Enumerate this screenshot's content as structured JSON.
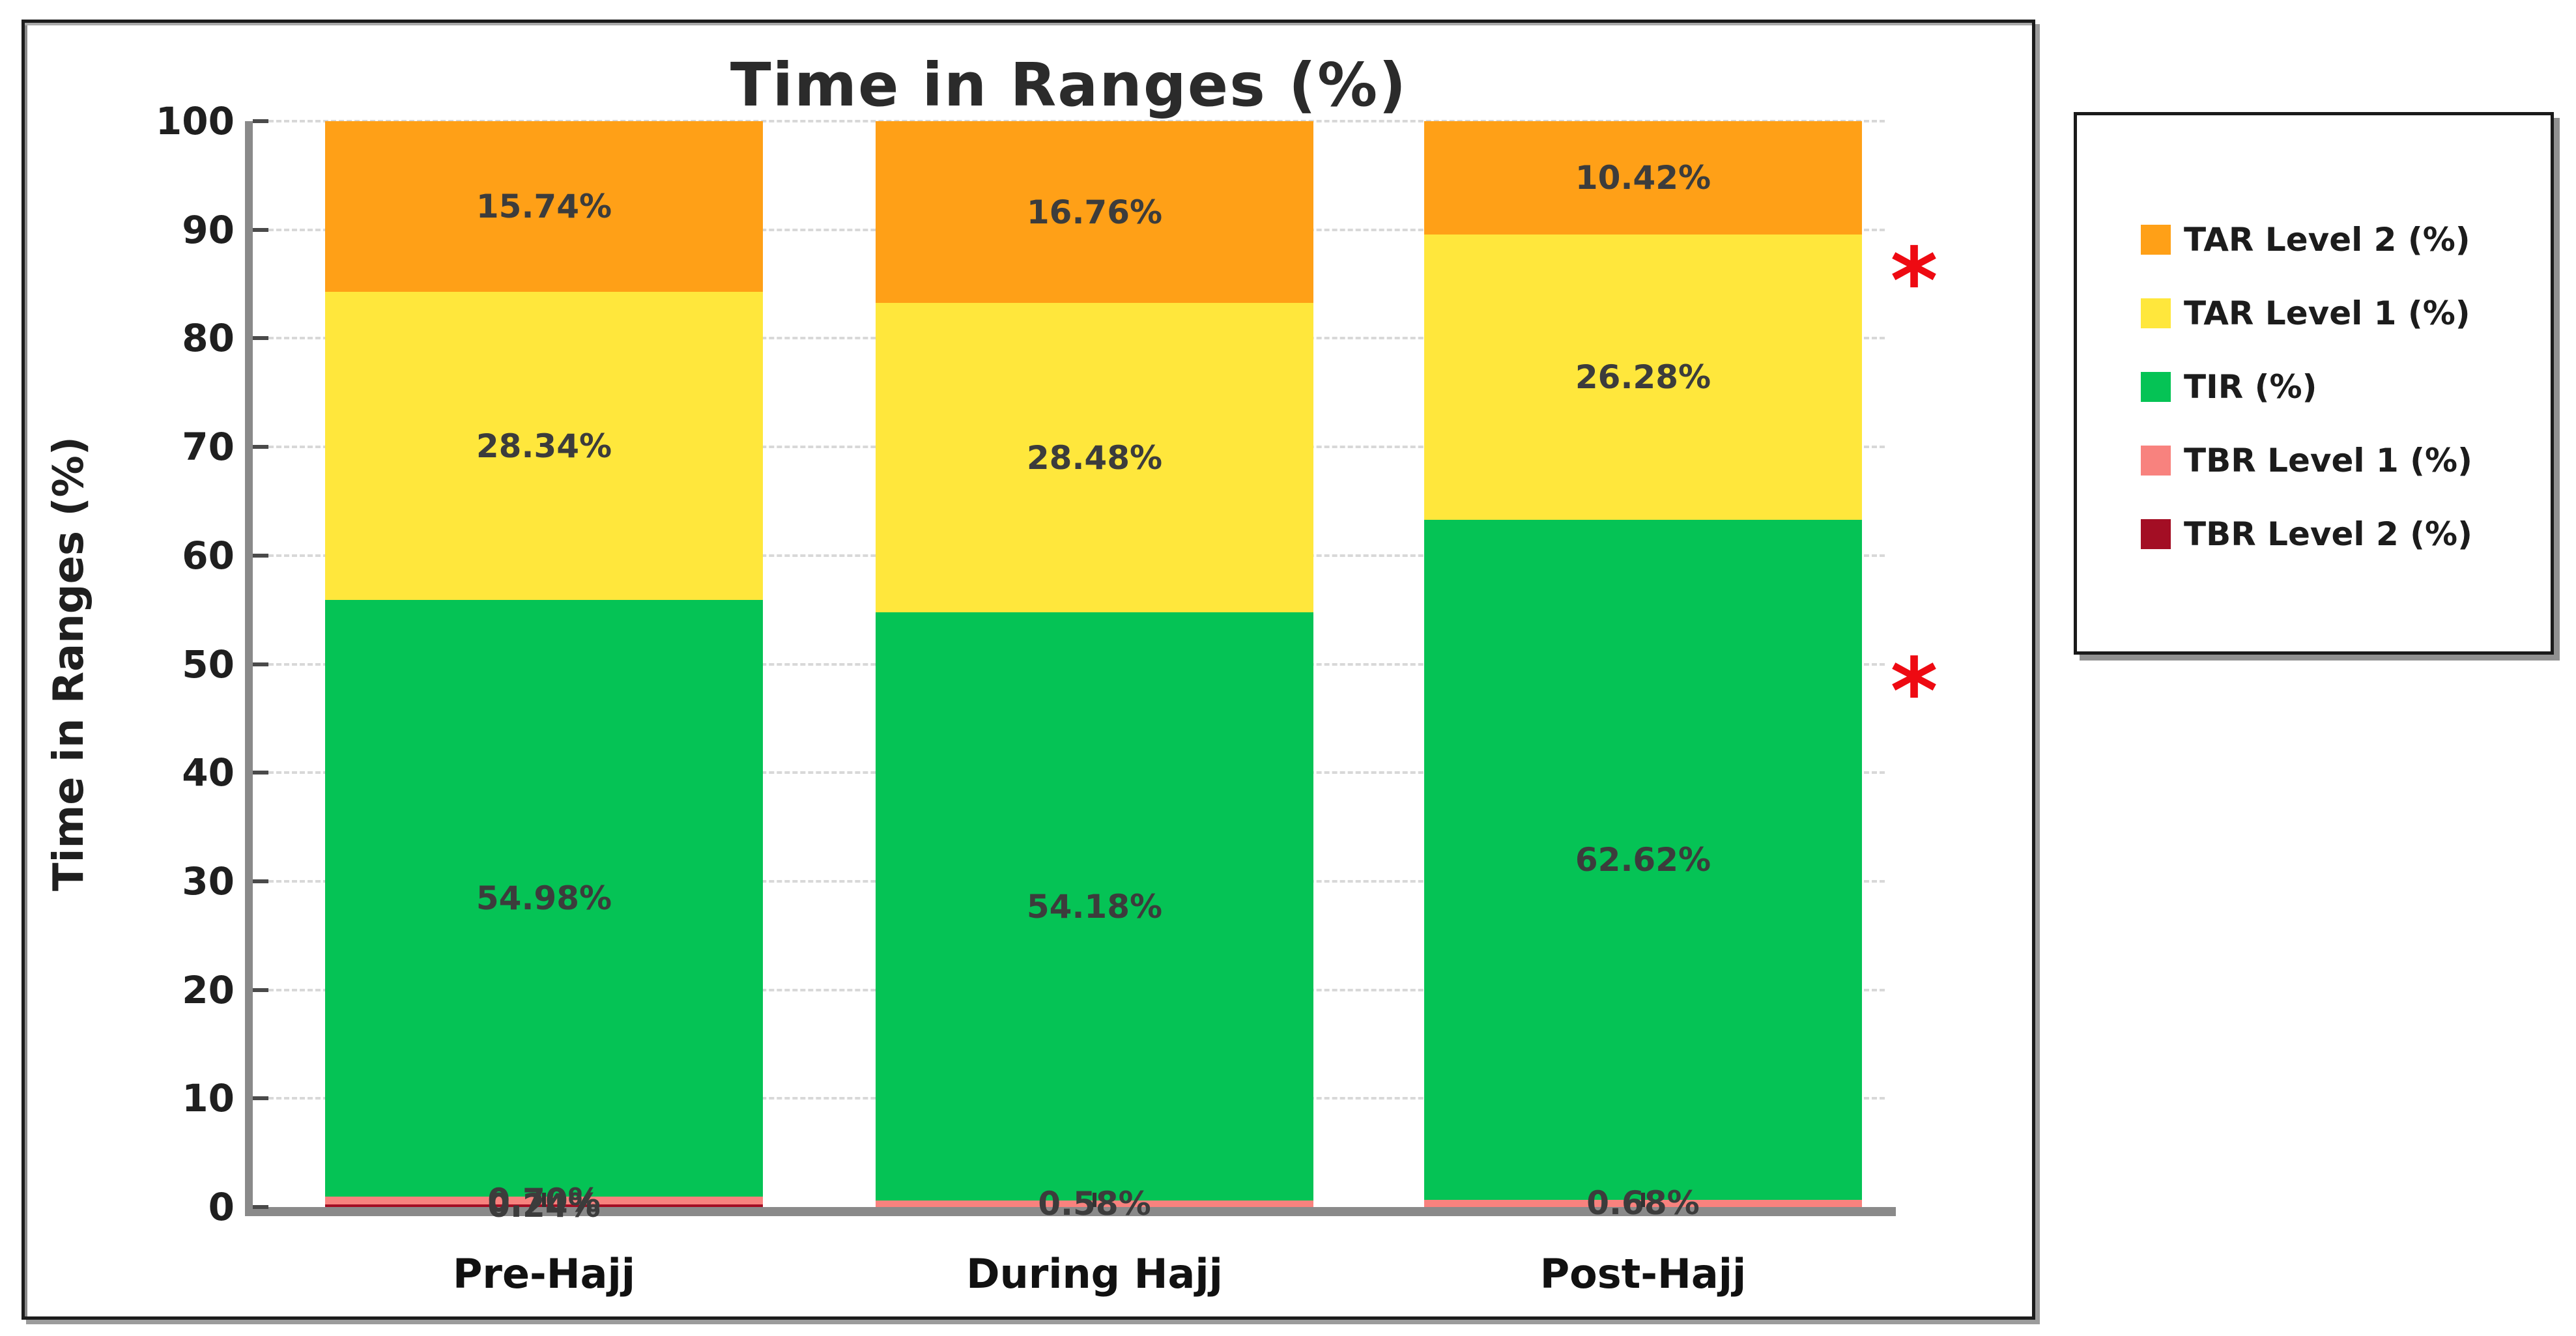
{
  "figure": {
    "title": "Time in Ranges (%)"
  },
  "chart_data": {
    "type": "bar",
    "stacked": true,
    "title": "Time in Ranges (%)",
    "xlabel": "",
    "ylabel": "Time in Ranges (%)",
    "ylim": [
      0,
      100
    ],
    "yticks": [
      0,
      10,
      20,
      30,
      40,
      50,
      60,
      70,
      80,
      90,
      100
    ],
    "grid": "horizontal dashed",
    "legend_position": "outside right",
    "categories": [
      "Pre-Hajj",
      "During Hajj",
      "Post-Hajj"
    ],
    "series": [
      {
        "name": "TBR Level 2 (%)",
        "color": "#a30e24",
        "values": [
          0.24,
          0,
          0
        ],
        "value_labels": [
          "0.24%",
          null,
          null
        ]
      },
      {
        "name": "TBR Level 1 (%)",
        "color": "#f8827e",
        "values": [
          0.7,
          0.58,
          0.68
        ],
        "value_labels": [
          "0.70%",
          "0.58%",
          "0.68%"
        ]
      },
      {
        "name": "TIR (%)",
        "color": "#05c355",
        "values": [
          54.98,
          54.18,
          62.62
        ],
        "value_labels": [
          "54.98%",
          "54.18%",
          "62.62%"
        ]
      },
      {
        "name": "TAR Level 1 (%)",
        "color": "#ffe73c",
        "values": [
          28.34,
          28.48,
          26.28
        ],
        "value_labels": [
          "28.34%",
          "28.48%",
          "26.28%"
        ]
      },
      {
        "name": "TAR Level 2 (%)",
        "color": "#ffa017",
        "values": [
          15.74,
          16.76,
          10.42
        ],
        "value_labels": [
          "15.74%",
          "16.76%",
          "10.42%"
        ]
      }
    ],
    "annotations": [
      {
        "symbol": "*",
        "color": "#ee0a12",
        "y": 86.5,
        "position": "right-of-plot"
      },
      {
        "symbol": "*",
        "color": "#ee0a12",
        "y": 48.7,
        "position": "right-of-plot"
      }
    ]
  },
  "legend": {
    "items": [
      {
        "label": "TAR Level 2 (%)",
        "color": "#ffa017"
      },
      {
        "label": "TAR Level 1 (%)",
        "color": "#ffe73c"
      },
      {
        "label": "TIR (%)",
        "color": "#05c355"
      },
      {
        "label": "TBR Level 1 (%)",
        "color": "#f8827e"
      },
      {
        "label": "TBR Level 2 (%)",
        "color": "#a30e24"
      }
    ]
  }
}
